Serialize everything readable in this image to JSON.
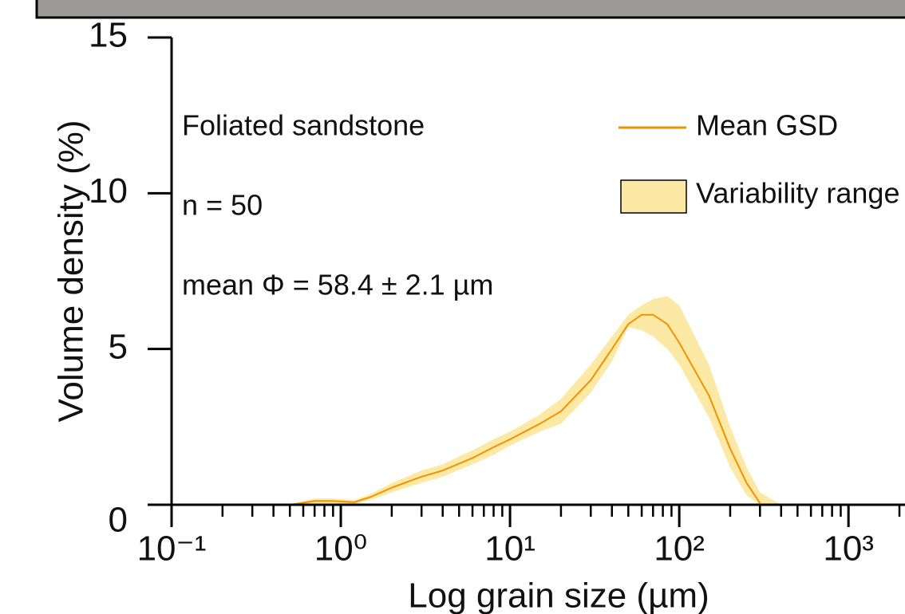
{
  "chart_data": {
    "type": "line",
    "x_label": "Log grain size (µm)",
    "y_label": "Volume density (%)",
    "annotations": [
      "Foliated sandstone",
      "n = 50",
      "mean Φ = 58.4 ± 2.1 µm"
    ],
    "x": [
      0.5,
      0.7,
      0.9,
      1.2,
      1.5,
      2,
      3,
      4,
      6,
      8,
      10,
      15,
      20,
      30,
      40,
      50,
      60,
      70,
      85,
      100,
      150,
      200,
      250,
      300,
      400
    ],
    "series": [
      {
        "name": "Mean GSD",
        "color": "#f39200",
        "values": [
          0,
          0.12,
          0.12,
          0.08,
          0.25,
          0.55,
          0.9,
          1.1,
          1.5,
          1.85,
          2.1,
          2.6,
          3.0,
          4.0,
          5.0,
          5.8,
          6.1,
          6.1,
          5.8,
          5.2,
          3.5,
          1.8,
          0.7,
          0.05,
          null
        ]
      },
      {
        "name": "Variability range",
        "color": "#fde9a6",
        "upper": [
          0,
          0.2,
          0.2,
          0.15,
          0.35,
          0.7,
          1.1,
          1.3,
          1.75,
          2.1,
          2.35,
          2.9,
          3.4,
          4.5,
          5.4,
          6.1,
          6.4,
          6.6,
          6.7,
          6.4,
          4.5,
          2.5,
          1.2,
          0.4,
          0
        ],
        "lower": [
          0,
          0.05,
          0.05,
          0.02,
          0.15,
          0.4,
          0.7,
          0.9,
          1.3,
          1.6,
          1.9,
          2.35,
          2.6,
          3.6,
          4.6,
          5.7,
          5.6,
          5.4,
          5.0,
          4.5,
          2.8,
          1.2,
          0.3,
          0,
          0
        ]
      }
    ],
    "log_x": true,
    "xlim": [
      0.1,
      2000
    ],
    "xticks": [
      {
        "value": 0.1,
        "label": "10⁻¹"
      },
      {
        "value": 1,
        "label": "10⁰"
      },
      {
        "value": 10,
        "label": "10¹"
      },
      {
        "value": 100,
        "label": "10²"
      },
      {
        "value": 1000,
        "label": "10³"
      }
    ],
    "xminorticks": [
      0.2,
      0.3,
      0.4,
      0.5,
      0.6,
      0.7,
      0.8,
      0.9,
      2,
      3,
      4,
      5,
      6,
      7,
      8,
      9,
      20,
      30,
      40,
      50,
      60,
      70,
      80,
      90,
      200,
      300,
      400,
      500,
      600,
      700,
      800,
      900,
      2000
    ],
    "ylim": [
      0,
      15
    ],
    "yticks": [
      0,
      5,
      10,
      15
    ]
  }
}
